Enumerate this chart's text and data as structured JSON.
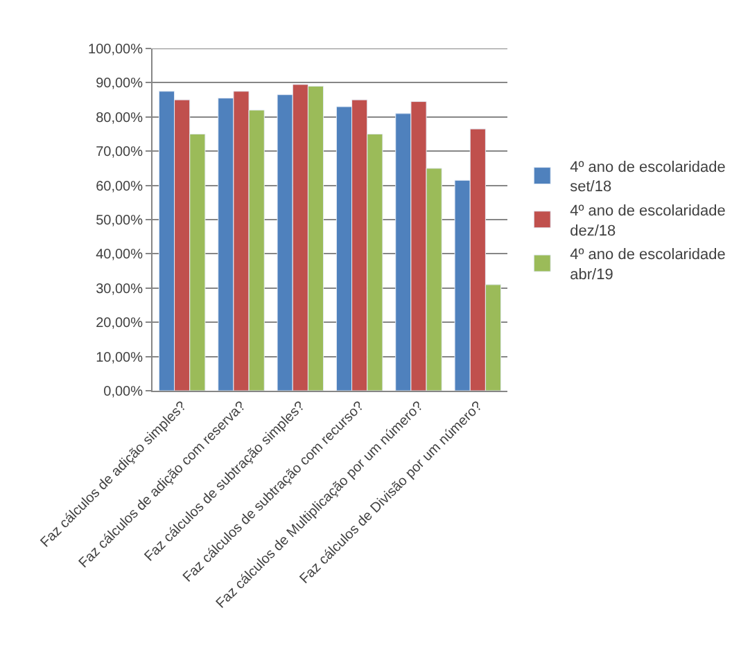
{
  "chart_data": {
    "type": "bar",
    "categories": [
      "Faz cálculos de adição simples?",
      "Faz cálculos de adição com reserva?",
      "Faz cálculos de subtração simples?",
      "Faz cálculos de subtração com recurso?",
      "Faz cálculos de Multiplicação por um número?",
      "Faz cálculos de Divisão por um número?"
    ],
    "series": [
      {
        "name": "4º ano de escolaridade set/18",
        "color": "#4f81bd",
        "values": [
          87.5,
          85.5,
          86.5,
          83,
          81,
          61.5
        ]
      },
      {
        "name": "4º ano de escolaridade dez/18",
        "color": "#c0504d",
        "values": [
          85,
          87.5,
          89.5,
          85,
          84.5,
          76.5
        ]
      },
      {
        "name": "4º ano de escolaridade abr/19",
        "color": "#9bbb59",
        "values": [
          75,
          82,
          89,
          75,
          65,
          31
        ]
      }
    ],
    "ylim": [
      0,
      100
    ],
    "yticks": [
      {
        "value": 0,
        "label": "0,00%"
      },
      {
        "value": 10,
        "label": "10,00%"
      },
      {
        "value": 20,
        "label": "20,00%"
      },
      {
        "value": 30,
        "label": "30,00%"
      },
      {
        "value": 40,
        "label": "40,00%"
      },
      {
        "value": 50,
        "label": "50,00%"
      },
      {
        "value": 60,
        "label": "60,00%"
      },
      {
        "value": 70,
        "label": "70,00%"
      },
      {
        "value": 80,
        "label": "80,00%"
      },
      {
        "value": 90,
        "label": "90,00%"
      },
      {
        "value": 100,
        "label": "100,00%"
      }
    ],
    "grid": "y",
    "legend": "right"
  }
}
